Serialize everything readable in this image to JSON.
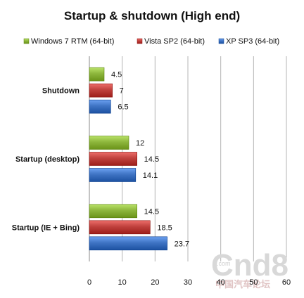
{
  "chart_data": {
    "type": "bar",
    "orientation": "horizontal",
    "title": "Startup & shutdown  (High end)",
    "categories": [
      "Shutdown",
      "Startup (desktop)",
      "Startup (IE + Bing)"
    ],
    "series": [
      {
        "name": "Windows 7 RTM  (64-bit)",
        "values": [
          4.5,
          12,
          14.5
        ],
        "labels": [
          "4.5",
          "12",
          "14.5"
        ],
        "color": "#8db63c"
      },
      {
        "name": "Vista SP2 (64-bit)",
        "values": [
          7,
          14.5,
          18.5
        ],
        "labels": [
          "7",
          "14.5",
          "18.5"
        ],
        "color": "#c0413d"
      },
      {
        "name": "XP SP3 (64-bit)",
        "values": [
          6.5,
          14.1,
          23.7
        ],
        "labels": [
          "6.5",
          "14.1",
          "23.7"
        ],
        "color": "#3f74c4"
      }
    ],
    "xlim": [
      0,
      60
    ],
    "xticks": [
      "0",
      "10",
      "20",
      "30",
      "40",
      "50",
      "60"
    ],
    "grid": true,
    "legend_position": "top"
  },
  "watermark": {
    "logo": "Cnd8",
    "small": ".com",
    "cn": "中国汽车论坛"
  }
}
